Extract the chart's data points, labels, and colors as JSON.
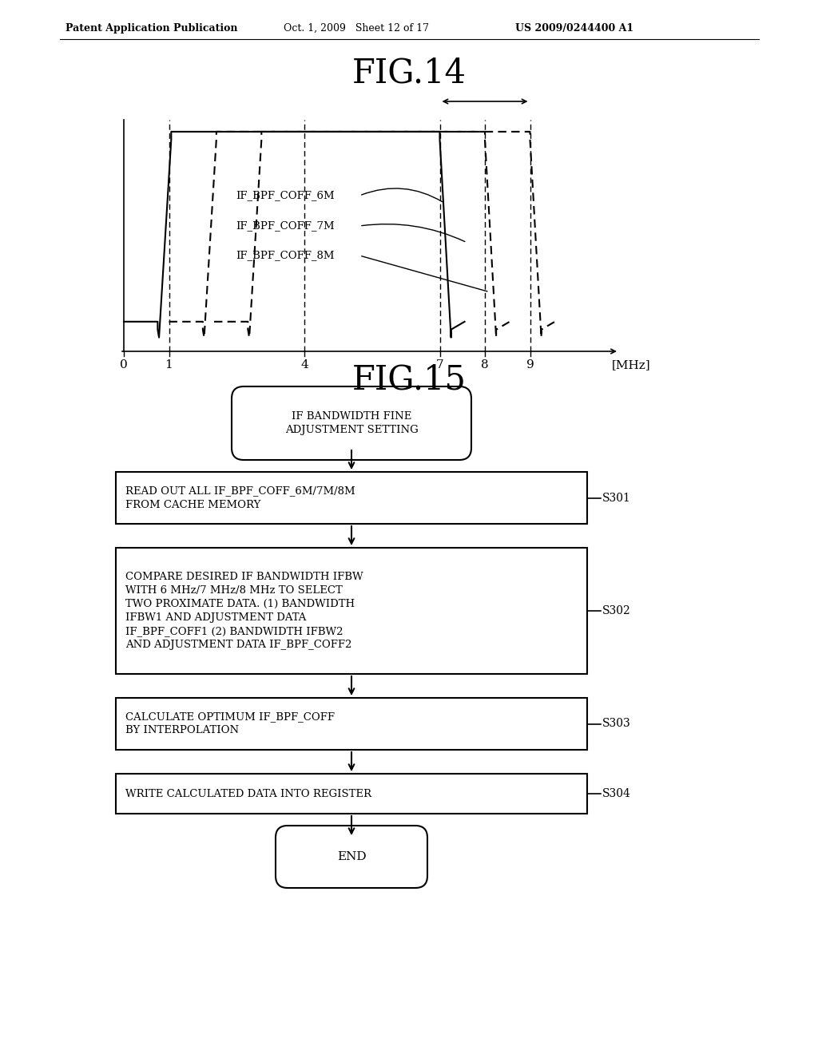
{
  "bg_color": "#ffffff",
  "header_left": "Patent Application Publication",
  "header_mid": "Oct. 1, 2009   Sheet 12 of 17",
  "header_right": "US 2009/0244400 A1",
  "fig14_title": "FIG.14",
  "fig15_title": "FIG.15",
  "fig14_xlabel": "[MHz]",
  "fig14_xticks": [
    0,
    1,
    4,
    7,
    8,
    9
  ],
  "flowchart": {
    "start_label": "IF BANDWIDTH FINE\nADJUSTMENT SETTING",
    "boxes": [
      {
        "label": "READ OUT ALL IF_BPF_COFF_6M/7M/8M\nFROM CACHE MEMORY",
        "step": "S301"
      },
      {
        "label": "COMPARE DESIRED IF BANDWIDTH IFBW\nWITH 6 MHz/7 MHz/8 MHz TO SELECT\nTWO PROXIMATE DATA. (1) BANDWIDTH\nIFBW1 AND ADJUSTMENT DATA\nIF_BPF_COFF1 (2) BANDWIDTH IFBW2\nAND ADJUSTMENT DATA IF_BPF_COFF2",
        "step": "S302"
      },
      {
        "label": "CALCULATE OPTIMUM IF_BPF_COFF\nBY INTERPOLATION",
        "step": "S303"
      },
      {
        "label": "WRITE CALCULATED DATA INTO REGISTER",
        "step": "S304"
      }
    ],
    "end_label": "END"
  }
}
